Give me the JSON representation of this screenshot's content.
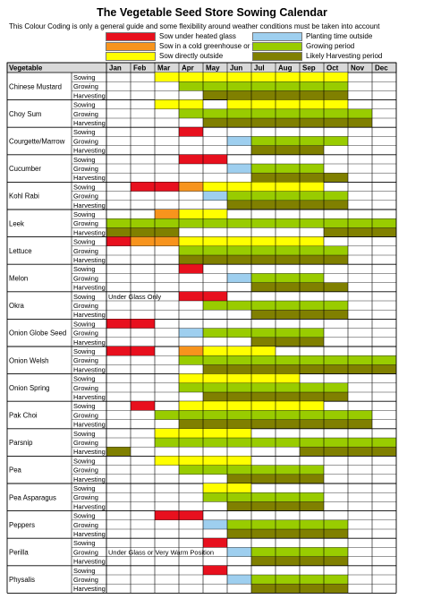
{
  "title": "The Vegetable Seed Store Sowing Calendar",
  "subtitle": "This Colour Coding is only a general guide and some flexibility around weather conditions must be taken into account",
  "legend": [
    {
      "label": "Sow under heated glass",
      "color": "#e8101e",
      "key": "H"
    },
    {
      "label": "Sow in a cold greenhouse or frame",
      "color": "#f7941d",
      "key": "C"
    },
    {
      "label": "Sow directly outside",
      "color": "#ffff00",
      "key": "D"
    },
    {
      "label": "Planting time outside",
      "color": "#9ecfef",
      "key": "P"
    },
    {
      "label": "Growing period",
      "color": "#99cc00",
      "key": "G"
    },
    {
      "label": "Likely Harvesting period",
      "color": "#808000",
      "key": "V"
    }
  ],
  "header": {
    "vegetable": "Vegetable",
    "months": [
      "Jan",
      "Feb",
      "Mar",
      "Apr",
      "May",
      "Jun",
      "Jul",
      "Aug",
      "Sep",
      "Oct",
      "Nov",
      "Dec"
    ]
  },
  "row_labels": [
    "Sowing",
    "Growing",
    "Harvesting"
  ],
  "vegetables": [
    {
      "name": "Chinese Mustard",
      "rows": [
        "..DDDDDDDD..",
        "...GGGGGGG..",
        "....VVVVVV.."
      ]
    },
    {
      "name": "Choy Sum",
      "rows": [
        "..DD.DDDDD..",
        "...GGGGGGGG.",
        "....VVVVVVV."
      ]
    },
    {
      "name": "Courgette/Marrow",
      "rows": [
        "...H........",
        ".....PGGGG..",
        "......VVV..."
      ]
    },
    {
      "name": "Cucumber",
      "rows": [
        "...HH.......",
        ".....PGGG...",
        "......VVVV.."
      ]
    },
    {
      "name": "Kohl Rabi",
      "rows": [
        ".HHCDDDDD...",
        "....PGGGGG..",
        ".....VVVVV.."
      ]
    },
    {
      "name": "Leek",
      "rows": [
        "..CDD.......",
        "GGGGGGGGGGGG",
        "VVV......VVV"
      ]
    },
    {
      "name": "Lettuce",
      "rows": [
        "HCCDDDDDD...",
        "...GGGGGGG..",
        "...VVVVVVV.."
      ]
    },
    {
      "name": "Melon",
      "rows": [
        "...H........",
        ".....PGGG...",
        "......VVVV.."
      ]
    },
    {
      "name": "Okra",
      "rows": [
        "...HH.......",
        "....GGGGGG..",
        "......VVVV.."
      ]
    },
    {
      "name": "Onion Globe Seed",
      "rows": [
        "HH..........",
        "...PGGGGG...",
        "......VVV..."
      ]
    },
    {
      "name": "Onion Welsh",
      "rows": [
        "HH.CDDD.....",
        "...GGGGGGGGG",
        "....VVVVVVVV"
      ]
    },
    {
      "name": "Onion Spring",
      "rows": [
        "...DDDDD....",
        "...GGGGGGG..",
        "....VVVVVV.."
      ]
    },
    {
      "name": "Pak Choi",
      "rows": [
        ".H.DDDDDD...",
        "..GGGGGGGGG.",
        "...VVVVVVVV."
      ]
    },
    {
      "name": "Parsnip",
      "rows": [
        "..DDDD......",
        "..GGGGGGGGGG",
        "V.......VVVV"
      ]
    },
    {
      "name": "Pea",
      "rows": [
        "..DDDD......",
        "...GGGGGG...",
        ".....VVVV..."
      ]
    },
    {
      "name": "Pea Asparagus",
      "rows": [
        "....DD......",
        "....GGGGG...",
        ".....VVVV..."
      ]
    },
    {
      "name": "Peppers",
      "rows": [
        "..HH........",
        "....PGGGGG..",
        ".....VVVVV.."
      ]
    },
    {
      "name": "Perilla",
      "rows": [
        "....H.......",
        ".....PGGGG..",
        "......VVVV.."
      ]
    },
    {
      "name": "Physalis",
      "rows": [
        "....H.......",
        ".....PGGGG..",
        "......VVVV.."
      ]
    }
  ],
  "notes": [
    {
      "veg": 8,
      "row": 0,
      "text": "Under Glass Only"
    },
    {
      "veg": 17,
      "row": 1,
      "text": "Under Glass or Very Warm Position"
    }
  ]
}
